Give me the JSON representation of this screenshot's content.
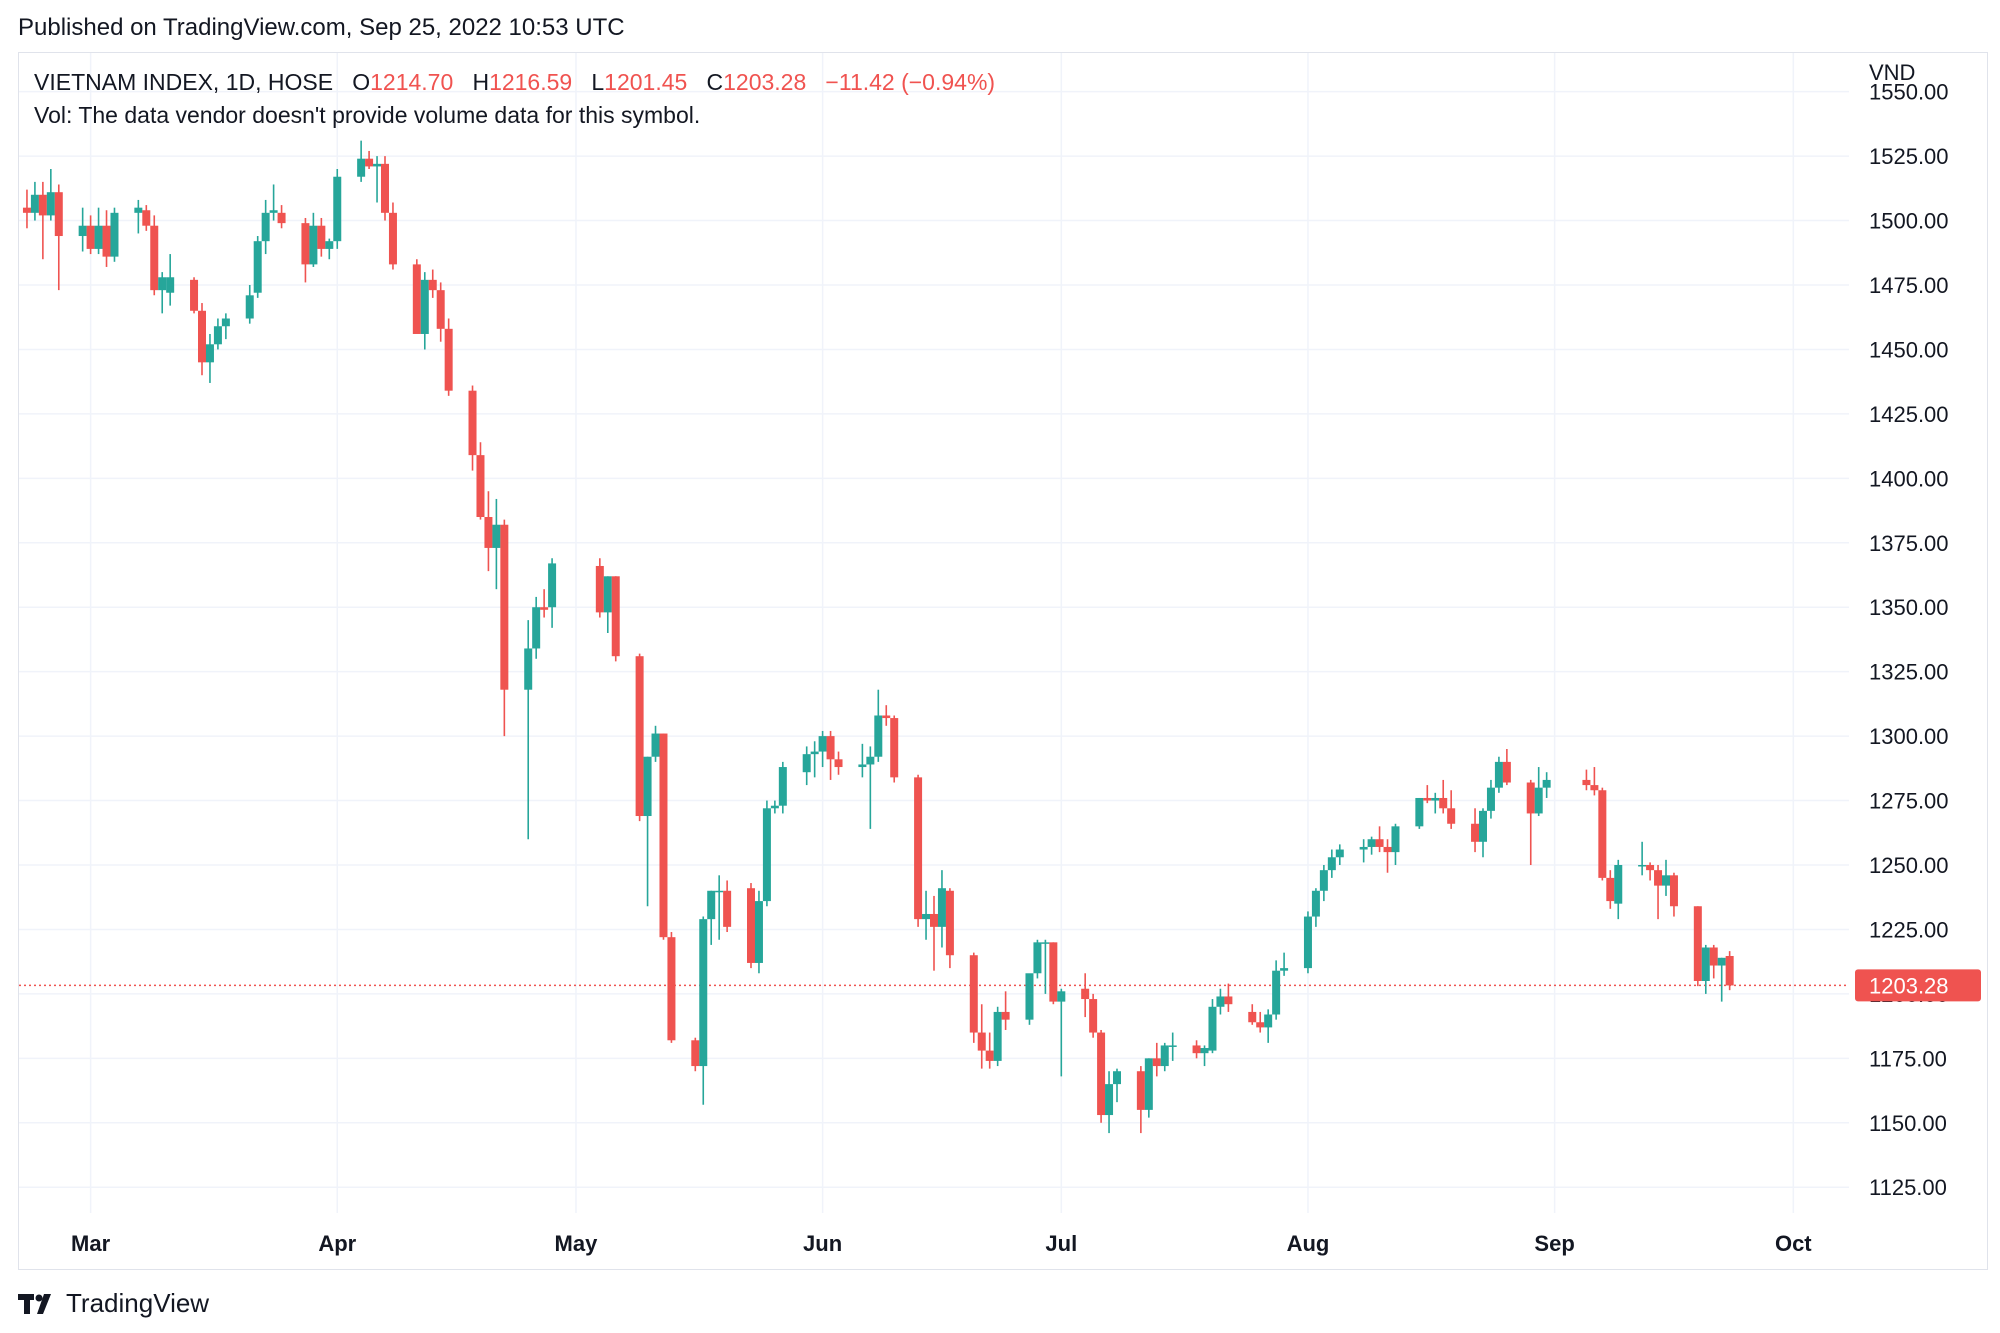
{
  "published": "Published on TradingView.com, Sep 25, 2022 10:53 UTC",
  "legend": {
    "symbol": "VIETNAM INDEX, 1D, HOSE",
    "o_label": "O",
    "o_value": "1214.70",
    "h_label": "H",
    "h_value": "1216.59",
    "l_label": "L",
    "l_value": "1201.45",
    "c_label": "C",
    "c_value": "1203.28",
    "change": "−11.42 (−0.94%)",
    "vol": "Vol: The data vendor doesn't provide volume data for this symbol."
  },
  "footer": {
    "brand": "TradingView",
    "logo_icon": "tradingview-logo-icon"
  },
  "colors": {
    "up": "#26a69a",
    "down": "#ef5350",
    "grid": "#f0f3fa",
    "text": "#131722",
    "price_line": "#ef5350"
  },
  "chart_data": {
    "type": "candlestick",
    "title": "VIETNAM INDEX, 1D, HOSE",
    "currency_label": "VND",
    "y_ticks": [
      "1125.00",
      "1150.00",
      "1175.00",
      "1200.00",
      "1225.00",
      "1250.00",
      "1275.00",
      "1300.00",
      "1325.00",
      "1350.00",
      "1375.00",
      "1400.00",
      "1425.00",
      "1450.00",
      "1475.00",
      "1500.00",
      "1525.00",
      "1550.00"
    ],
    "x_ticks": [
      "Mar",
      "Apr",
      "May",
      "Jun",
      "Jul",
      "Aug",
      "Sep",
      "Oct"
    ],
    "x_tick_dates": [
      "2022-03-01",
      "2022-04-01",
      "2022-05-01",
      "2022-06-01",
      "2022-07-01",
      "2022-08-01",
      "2022-09-01",
      "2022-10-01"
    ],
    "ylim": [
      1115,
      1565
    ],
    "xlim": [
      "2022-02-20",
      "2022-10-08"
    ],
    "last_price": "1203.28",
    "last_price_value": 1203.28,
    "grid": true,
    "legend_placement": "top-left",
    "candles": [
      {
        "d": "2022-02-21",
        "o": 1505,
        "h": 1512,
        "l": 1497,
        "c": 1503
      },
      {
        "d": "2022-02-22",
        "o": 1503,
        "h": 1515,
        "l": 1500,
        "c": 1510
      },
      {
        "d": "2022-02-23",
        "o": 1510,
        "h": 1515,
        "l": 1485,
        "c": 1502
      },
      {
        "d": "2022-02-24",
        "o": 1502,
        "h": 1520,
        "l": 1500,
        "c": 1511
      },
      {
        "d": "2022-02-25",
        "o": 1511,
        "h": 1514,
        "l": 1473,
        "c": 1494
      },
      {
        "d": "2022-02-28",
        "o": 1494,
        "h": 1505,
        "l": 1488,
        "c": 1498
      },
      {
        "d": "2022-03-01",
        "o": 1498,
        "h": 1502,
        "l": 1487,
        "c": 1489
      },
      {
        "d": "2022-03-02",
        "o": 1489,
        "h": 1505,
        "l": 1487,
        "c": 1498
      },
      {
        "d": "2022-03-03",
        "o": 1498,
        "h": 1504,
        "l": 1482,
        "c": 1486
      },
      {
        "d": "2022-03-04",
        "o": 1486,
        "h": 1505,
        "l": 1484,
        "c": 1503
      },
      {
        "d": "2022-03-07",
        "o": 1503,
        "h": 1508,
        "l": 1495,
        "c": 1505
      },
      {
        "d": "2022-03-08",
        "o": 1504,
        "h": 1506,
        "l": 1496,
        "c": 1498
      },
      {
        "d": "2022-03-09",
        "o": 1498,
        "h": 1502,
        "l": 1471,
        "c": 1473
      },
      {
        "d": "2022-03-10",
        "o": 1473,
        "h": 1480,
        "l": 1464,
        "c": 1478
      },
      {
        "d": "2022-03-11",
        "o": 1472,
        "h": 1487,
        "l": 1467,
        "c": 1478
      },
      {
        "d": "2022-03-14",
        "o": 1477,
        "h": 1478,
        "l": 1464,
        "c": 1465
      },
      {
        "d": "2022-03-15",
        "o": 1465,
        "h": 1468,
        "l": 1440,
        "c": 1445
      },
      {
        "d": "2022-03-16",
        "o": 1445,
        "h": 1456,
        "l": 1437,
        "c": 1452
      },
      {
        "d": "2022-03-17",
        "o": 1452,
        "h": 1462,
        "l": 1450,
        "c": 1459
      },
      {
        "d": "2022-03-18",
        "o": 1459,
        "h": 1464,
        "l": 1454,
        "c": 1462
      },
      {
        "d": "2022-03-21",
        "o": 1462,
        "h": 1475,
        "l": 1460,
        "c": 1471
      },
      {
        "d": "2022-03-22",
        "o": 1472,
        "h": 1494,
        "l": 1470,
        "c": 1492
      },
      {
        "d": "2022-03-23",
        "o": 1492,
        "h": 1508,
        "l": 1487,
        "c": 1503
      },
      {
        "d": "2022-03-24",
        "o": 1503,
        "h": 1514,
        "l": 1500,
        "c": 1504
      },
      {
        "d": "2022-03-25",
        "o": 1503,
        "h": 1506,
        "l": 1497,
        "c": 1499
      },
      {
        "d": "2022-03-28",
        "o": 1499,
        "h": 1501,
        "l": 1476,
        "c": 1483
      },
      {
        "d": "2022-03-29",
        "o": 1483,
        "h": 1503,
        "l": 1482,
        "c": 1498
      },
      {
        "d": "2022-03-30",
        "o": 1498,
        "h": 1501,
        "l": 1486,
        "c": 1489
      },
      {
        "d": "2022-03-31",
        "o": 1489,
        "h": 1493,
        "l": 1485,
        "c": 1492
      },
      {
        "d": "2022-04-01",
        "o": 1492,
        "h": 1520,
        "l": 1489,
        "c": 1517
      },
      {
        "d": "2022-04-04",
        "o": 1517,
        "h": 1531,
        "l": 1515,
        "c": 1524
      },
      {
        "d": "2022-04-05",
        "o": 1524,
        "h": 1527,
        "l": 1520,
        "c": 1521
      },
      {
        "d": "2022-04-06",
        "o": 1521,
        "h": 1525,
        "l": 1507,
        "c": 1522
      },
      {
        "d": "2022-04-07",
        "o": 1522,
        "h": 1525,
        "l": 1500,
        "c": 1503
      },
      {
        "d": "2022-04-08",
        "o": 1503,
        "h": 1507,
        "l": 1481,
        "c": 1483
      },
      {
        "d": "2022-04-11",
        "o": 1483,
        "h": 1485,
        "l": 1459,
        "c": 1456
      },
      {
        "d": "2022-04-12",
        "o": 1456,
        "h": 1480,
        "l": 1450,
        "c": 1477
      },
      {
        "d": "2022-04-13",
        "o": 1477,
        "h": 1481,
        "l": 1470,
        "c": 1473
      },
      {
        "d": "2022-04-14",
        "o": 1473,
        "h": 1476,
        "l": 1453,
        "c": 1458
      },
      {
        "d": "2022-04-15",
        "o": 1458,
        "h": 1462,
        "l": 1432,
        "c": 1434
      },
      {
        "d": "2022-04-18",
        "o": 1434,
        "h": 1436,
        "l": 1403,
        "c": 1409
      },
      {
        "d": "2022-04-19",
        "o": 1409,
        "h": 1414,
        "l": 1384,
        "c": 1385
      },
      {
        "d": "2022-04-20",
        "o": 1385,
        "h": 1395,
        "l": 1364,
        "c": 1373
      },
      {
        "d": "2022-04-21",
        "o": 1373,
        "h": 1392,
        "l": 1357,
        "c": 1382
      },
      {
        "d": "2022-04-22",
        "o": 1382,
        "h": 1384,
        "l": 1300,
        "c": 1318
      },
      {
        "d": "2022-04-25",
        "o": 1318,
        "h": 1345,
        "l": 1260,
        "c": 1334
      },
      {
        "d": "2022-04-26",
        "o": 1334,
        "h": 1354,
        "l": 1330,
        "c": 1350
      },
      {
        "d": "2022-04-27",
        "o": 1350,
        "h": 1357,
        "l": 1346,
        "c": 1349
      },
      {
        "d": "2022-04-28",
        "o": 1350,
        "h": 1369,
        "l": 1342,
        "c": 1367
      },
      {
        "d": "2022-05-04",
        "o": 1366,
        "h": 1369,
        "l": 1346,
        "c": 1348
      },
      {
        "d": "2022-05-05",
        "o": 1348,
        "h": 1362,
        "l": 1340,
        "c": 1362
      },
      {
        "d": "2022-05-06",
        "o": 1362,
        "h": 1362,
        "l": 1329,
        "c": 1331
      },
      {
        "d": "2022-05-09",
        "o": 1331,
        "h": 1332,
        "l": 1267,
        "c": 1269
      },
      {
        "d": "2022-05-10",
        "o": 1269,
        "h": 1292,
        "l": 1234,
        "c": 1292
      },
      {
        "d": "2022-05-11",
        "o": 1292,
        "h": 1304,
        "l": 1290,
        "c": 1301
      },
      {
        "d": "2022-05-12",
        "o": 1301,
        "h": 1301,
        "l": 1221,
        "c": 1222
      },
      {
        "d": "2022-05-13",
        "o": 1222,
        "h": 1224,
        "l": 1181,
        "c": 1182
      },
      {
        "d": "2022-05-16",
        "o": 1182,
        "h": 1183,
        "l": 1170,
        "c": 1172
      },
      {
        "d": "2022-05-17",
        "o": 1172,
        "h": 1230,
        "l": 1157,
        "c": 1229
      },
      {
        "d": "2022-05-18",
        "o": 1229,
        "h": 1240,
        "l": 1219,
        "c": 1240
      },
      {
        "d": "2022-05-19",
        "o": 1240,
        "h": 1246,
        "l": 1221,
        "c": 1240
      },
      {
        "d": "2022-05-20",
        "o": 1240,
        "h": 1244,
        "l": 1224,
        "c": 1226
      },
      {
        "d": "2022-05-23",
        "o": 1241,
        "h": 1243,
        "l": 1210,
        "c": 1212
      },
      {
        "d": "2022-05-24",
        "o": 1212,
        "h": 1240,
        "l": 1208,
        "c": 1236
      },
      {
        "d": "2022-05-25",
        "o": 1236,
        "h": 1275,
        "l": 1234,
        "c": 1272
      },
      {
        "d": "2022-05-26",
        "o": 1272,
        "h": 1275,
        "l": 1270,
        "c": 1273
      },
      {
        "d": "2022-05-27",
        "o": 1273,
        "h": 1290,
        "l": 1270,
        "c": 1288
      },
      {
        "d": "2022-05-30",
        "o": 1286,
        "h": 1296,
        "l": 1281,
        "c": 1293
      },
      {
        "d": "2022-05-31",
        "o": 1293,
        "h": 1298,
        "l": 1284,
        "c": 1294
      },
      {
        "d": "2022-06-01",
        "o": 1294,
        "h": 1302,
        "l": 1288,
        "c": 1300
      },
      {
        "d": "2022-06-02",
        "o": 1300,
        "h": 1302,
        "l": 1283,
        "c": 1291
      },
      {
        "d": "2022-06-03",
        "o": 1291,
        "h": 1294,
        "l": 1285,
        "c": 1288
      },
      {
        "d": "2022-06-06",
        "o": 1288,
        "h": 1297,
        "l": 1284,
        "c": 1289
      },
      {
        "d": "2022-06-07",
        "o": 1289,
        "h": 1296,
        "l": 1264,
        "c": 1292
      },
      {
        "d": "2022-06-08",
        "o": 1292,
        "h": 1318,
        "l": 1290,
        "c": 1308
      },
      {
        "d": "2022-06-09",
        "o": 1308,
        "h": 1312,
        "l": 1304,
        "c": 1307
      },
      {
        "d": "2022-06-10",
        "o": 1307,
        "h": 1308,
        "l": 1282,
        "c": 1284
      },
      {
        "d": "2022-06-13",
        "o": 1284,
        "h": 1285,
        "l": 1226,
        "c": 1229
      },
      {
        "d": "2022-06-14",
        "o": 1229,
        "h": 1240,
        "l": 1221,
        "c": 1231
      },
      {
        "d": "2022-06-15",
        "o": 1231,
        "h": 1238,
        "l": 1209,
        "c": 1226
      },
      {
        "d": "2022-06-16",
        "o": 1226,
        "h": 1248,
        "l": 1218,
        "c": 1241
      },
      {
        "d": "2022-06-17",
        "o": 1240,
        "h": 1241,
        "l": 1210,
        "c": 1215
      },
      {
        "d": "2022-06-20",
        "o": 1215,
        "h": 1216,
        "l": 1181,
        "c": 1185
      },
      {
        "d": "2022-06-21",
        "o": 1185,
        "h": 1196,
        "l": 1171,
        "c": 1178
      },
      {
        "d": "2022-06-22",
        "o": 1178,
        "h": 1185,
        "l": 1171,
        "c": 1174
      },
      {
        "d": "2022-06-23",
        "o": 1174,
        "h": 1195,
        "l": 1172,
        "c": 1193
      },
      {
        "d": "2022-06-24",
        "o": 1193,
        "h": 1201,
        "l": 1186,
        "c": 1190
      },
      {
        "d": "2022-06-27",
        "o": 1190,
        "h": 1204,
        "l": 1188,
        "c": 1208
      },
      {
        "d": "2022-06-28",
        "o": 1208,
        "h": 1221,
        "l": 1206,
        "c": 1220
      },
      {
        "d": "2022-06-29",
        "o": 1220,
        "h": 1221,
        "l": 1200,
        "c": 1220
      },
      {
        "d": "2022-06-30",
        "o": 1220,
        "h": 1220,
        "l": 1196,
        "c": 1197
      },
      {
        "d": "2022-07-01",
        "o": 1197,
        "h": 1202,
        "l": 1168,
        "c": 1201
      },
      {
        "d": "2022-07-04",
        "o": 1202,
        "h": 1208,
        "l": 1191,
        "c": 1198
      },
      {
        "d": "2022-07-05",
        "o": 1198,
        "h": 1200,
        "l": 1183,
        "c": 1185
      },
      {
        "d": "2022-07-06",
        "o": 1185,
        "h": 1186,
        "l": 1150,
        "c": 1153
      },
      {
        "d": "2022-07-07",
        "o": 1153,
        "h": 1170,
        "l": 1146,
        "c": 1165
      },
      {
        "d": "2022-07-08",
        "o": 1165,
        "h": 1171,
        "l": 1158,
        "c": 1170
      },
      {
        "d": "2022-07-11",
        "o": 1170,
        "h": 1172,
        "l": 1146,
        "c": 1155
      },
      {
        "d": "2022-07-12",
        "o": 1155,
        "h": 1175,
        "l": 1152,
        "c": 1175
      },
      {
        "d": "2022-07-13",
        "o": 1175,
        "h": 1181,
        "l": 1168,
        "c": 1172
      },
      {
        "d": "2022-07-14",
        "o": 1172,
        "h": 1181,
        "l": 1170,
        "c": 1180
      },
      {
        "d": "2022-07-15",
        "o": 1180,
        "h": 1185,
        "l": 1174,
        "c": 1180
      },
      {
        "d": "2022-07-18",
        "o": 1180,
        "h": 1182,
        "l": 1175,
        "c": 1177
      },
      {
        "d": "2022-07-19",
        "o": 1177,
        "h": 1180,
        "l": 1172,
        "c": 1179
      },
      {
        "d": "2022-07-20",
        "o": 1178,
        "h": 1198,
        "l": 1177,
        "c": 1195
      },
      {
        "d": "2022-07-21",
        "o": 1195,
        "h": 1202,
        "l": 1192,
        "c": 1199
      },
      {
        "d": "2022-07-22",
        "o": 1199,
        "h": 1204,
        "l": 1193,
        "c": 1196
      },
      {
        "d": "2022-07-25",
        "o": 1193,
        "h": 1196,
        "l": 1188,
        "c": 1189
      },
      {
        "d": "2022-07-26",
        "o": 1189,
        "h": 1193,
        "l": 1185,
        "c": 1187
      },
      {
        "d": "2022-07-27",
        "o": 1187,
        "h": 1194,
        "l": 1181,
        "c": 1192
      },
      {
        "d": "2022-07-28",
        "o": 1192,
        "h": 1213,
        "l": 1190,
        "c": 1209
      },
      {
        "d": "2022-07-29",
        "o": 1209,
        "h": 1216,
        "l": 1207,
        "c": 1210
      },
      {
        "d": "2022-08-01",
        "o": 1210,
        "h": 1232,
        "l": 1208,
        "c": 1230
      },
      {
        "d": "2022-08-02",
        "o": 1230,
        "h": 1241,
        "l": 1226,
        "c": 1240
      },
      {
        "d": "2022-08-03",
        "o": 1240,
        "h": 1250,
        "l": 1236,
        "c": 1248
      },
      {
        "d": "2022-08-04",
        "o": 1248,
        "h": 1256,
        "l": 1245,
        "c": 1253
      },
      {
        "d": "2022-08-05",
        "o": 1253,
        "h": 1258,
        "l": 1250,
        "c": 1256
      },
      {
        "d": "2022-08-08",
        "o": 1256,
        "h": 1260,
        "l": 1251,
        "c": 1257
      },
      {
        "d": "2022-08-09",
        "o": 1257,
        "h": 1261,
        "l": 1254,
        "c": 1260
      },
      {
        "d": "2022-08-10",
        "o": 1260,
        "h": 1265,
        "l": 1255,
        "c": 1257
      },
      {
        "d": "2022-08-11",
        "o": 1257,
        "h": 1260,
        "l": 1247,
        "c": 1255
      },
      {
        "d": "2022-08-12",
        "o": 1255,
        "h": 1266,
        "l": 1250,
        "c": 1265
      },
      {
        "d": "2022-08-15",
        "o": 1265,
        "h": 1276,
        "l": 1264,
        "c": 1276
      },
      {
        "d": "2022-08-16",
        "o": 1276,
        "h": 1281,
        "l": 1274,
        "c": 1275
      },
      {
        "d": "2022-08-17",
        "o": 1275,
        "h": 1278,
        "l": 1270,
        "c": 1276
      },
      {
        "d": "2022-08-18",
        "o": 1276,
        "h": 1283,
        "l": 1270,
        "c": 1272
      },
      {
        "d": "2022-08-19",
        "o": 1272,
        "h": 1279,
        "l": 1264,
        "c": 1266
      },
      {
        "d": "2022-08-22",
        "o": 1266,
        "h": 1272,
        "l": 1255,
        "c": 1259
      },
      {
        "d": "2022-08-23",
        "o": 1259,
        "h": 1272,
        "l": 1253,
        "c": 1271
      },
      {
        "d": "2022-08-24",
        "o": 1271,
        "h": 1283,
        "l": 1268,
        "c": 1280
      },
      {
        "d": "2022-08-25",
        "o": 1280,
        "h": 1292,
        "l": 1278,
        "c": 1290
      },
      {
        "d": "2022-08-26",
        "o": 1290,
        "h": 1295,
        "l": 1281,
        "c": 1282
      },
      {
        "d": "2022-08-29",
        "o": 1282,
        "h": 1283,
        "l": 1250,
        "c": 1270
      },
      {
        "d": "2022-08-30",
        "o": 1270,
        "h": 1288,
        "l": 1269,
        "c": 1280
      },
      {
        "d": "2022-08-31",
        "o": 1280,
        "h": 1286,
        "l": 1276,
        "c": 1283
      },
      {
        "d": "2022-09-05",
        "o": 1283,
        "h": 1287,
        "l": 1279,
        "c": 1281
      },
      {
        "d": "2022-09-06",
        "o": 1281,
        "h": 1288,
        "l": 1277,
        "c": 1279
      },
      {
        "d": "2022-09-07",
        "o": 1279,
        "h": 1280,
        "l": 1244,
        "c": 1245
      },
      {
        "d": "2022-09-08",
        "o": 1245,
        "h": 1248,
        "l": 1233,
        "c": 1236
      },
      {
        "d": "2022-09-09",
        "o": 1235,
        "h": 1252,
        "l": 1229,
        "c": 1250
      },
      {
        "d": "2022-09-12",
        "o": 1250,
        "h": 1259,
        "l": 1246,
        "c": 1250
      },
      {
        "d": "2022-09-13",
        "o": 1250,
        "h": 1251,
        "l": 1244,
        "c": 1248
      },
      {
        "d": "2022-09-14",
        "o": 1248,
        "h": 1250,
        "l": 1229,
        "c": 1242
      },
      {
        "d": "2022-09-15",
        "o": 1242,
        "h": 1252,
        "l": 1238,
        "c": 1246
      },
      {
        "d": "2022-09-16",
        "o": 1246,
        "h": 1247,
        "l": 1230,
        "c": 1234
      },
      {
        "d": "2022-09-19",
        "o": 1234,
        "h": 1234,
        "l": 1203,
        "c": 1205
      },
      {
        "d": "2022-09-20",
        "o": 1205,
        "h": 1219,
        "l": 1200,
        "c": 1218
      },
      {
        "d": "2022-09-21",
        "o": 1218,
        "h": 1219,
        "l": 1206,
        "c": 1211
      },
      {
        "d": "2022-09-22",
        "o": 1211,
        "h": 1214,
        "l": 1197,
        "c": 1214
      },
      {
        "d": "2022-09-23",
        "o": 1214.7,
        "h": 1216.59,
        "l": 1201.45,
        "c": 1203.28
      }
    ]
  }
}
